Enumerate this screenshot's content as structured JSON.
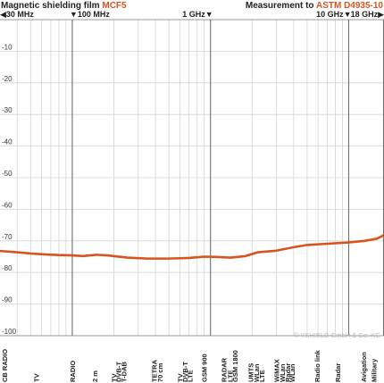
{
  "title": "Magnetic shielding film",
  "title_accent": "MCF5",
  "measurement": "Measurement to",
  "measurement_accent": "ASTM D4935-10",
  "watermark": "© YSHIELD GmbH & Co. KG",
  "chart_data": {
    "type": "line",
    "x_scale": "log",
    "xlim_mhz": [
      30,
      18000
    ],
    "ylim": [
      -100,
      0
    ],
    "grid": true,
    "top_ticks": [
      {
        "label": "30 MHz",
        "mhz": 30,
        "arrow": "left"
      },
      {
        "label": "100 MHz",
        "mhz": 100,
        "arrow": "down"
      },
      {
        "label": "1 GHz",
        "mhz": 1000,
        "arrow": "down"
      },
      {
        "label": "10 GHz",
        "mhz": 10000,
        "arrow": "down"
      },
      {
        "label": "18 GHz",
        "mhz": 18000,
        "arrow": "right"
      }
    ],
    "y_ticks": [
      -10,
      -20,
      -30,
      -40,
      -50,
      -60,
      -70,
      -80,
      -90,
      -100
    ],
    "categories": [
      {
        "label": "CB RADIO",
        "mhz": 30
      },
      {
        "label": "TV",
        "mhz": 55
      },
      {
        "label": "RADIO",
        "mhz": 100
      },
      {
        "label": "2 m",
        "mhz": 145
      },
      {
        "label": "TV",
        "mhz": 200
      },
      {
        "label": "DVB-T",
        "mhz": 215
      },
      {
        "label": "T-DAB",
        "mhz": 235
      },
      {
        "label": "TETRA",
        "mhz": 390
      },
      {
        "label": "70 cm",
        "mhz": 430
      },
      {
        "label": "TV",
        "mhz": 600
      },
      {
        "label": "DVB-T",
        "mhz": 650
      },
      {
        "label": "LTE",
        "mhz": 710
      },
      {
        "label": "GSM 900",
        "mhz": 900
      },
      {
        "label": "RADAR",
        "mhz": 1250
      },
      {
        "label": "LTE",
        "mhz": 1380
      },
      {
        "label": "GSM 1800",
        "mhz": 1500
      },
      {
        "label": "UMTS",
        "mhz": 1950
      },
      {
        "label": "WLan",
        "mhz": 2150
      },
      {
        "label": "LTE",
        "mhz": 2350
      },
      {
        "label": "WiMAX",
        "mhz": 3000
      },
      {
        "label": "WLan",
        "mhz": 3300
      },
      {
        "label": "Radar",
        "mhz": 3600
      },
      {
        "label": "WLan",
        "mhz": 3900
      },
      {
        "label": "Radio link",
        "mhz": 5900
      },
      {
        "label": "Radar",
        "mhz": 8300
      },
      {
        "label": "Avigation",
        "mhz": 12800
      },
      {
        "label": "Military",
        "mhz": 15200
      }
    ],
    "series": [
      {
        "color": "#d9531e",
        "x_mhz": [
          30,
          40,
          50,
          65,
          80,
          100,
          120,
          150,
          180,
          250,
          350,
          500,
          700,
          900,
          1100,
          1400,
          1800,
          2200,
          3000,
          4000,
          5000,
          7000,
          10000,
          13000,
          16000,
          18000
        ],
        "y_db": [
          -73.2,
          -73.6,
          -74.0,
          -74.3,
          -74.5,
          -74.6,
          -74.8,
          -74.4,
          -74.6,
          -75.3,
          -75.6,
          -75.6,
          -75.4,
          -75.0,
          -75.1,
          -75.3,
          -74.8,
          -73.6,
          -73.1,
          -72.0,
          -71.3,
          -70.9,
          -70.5,
          -70.0,
          -69.3,
          -68.2
        ]
      }
    ]
  }
}
